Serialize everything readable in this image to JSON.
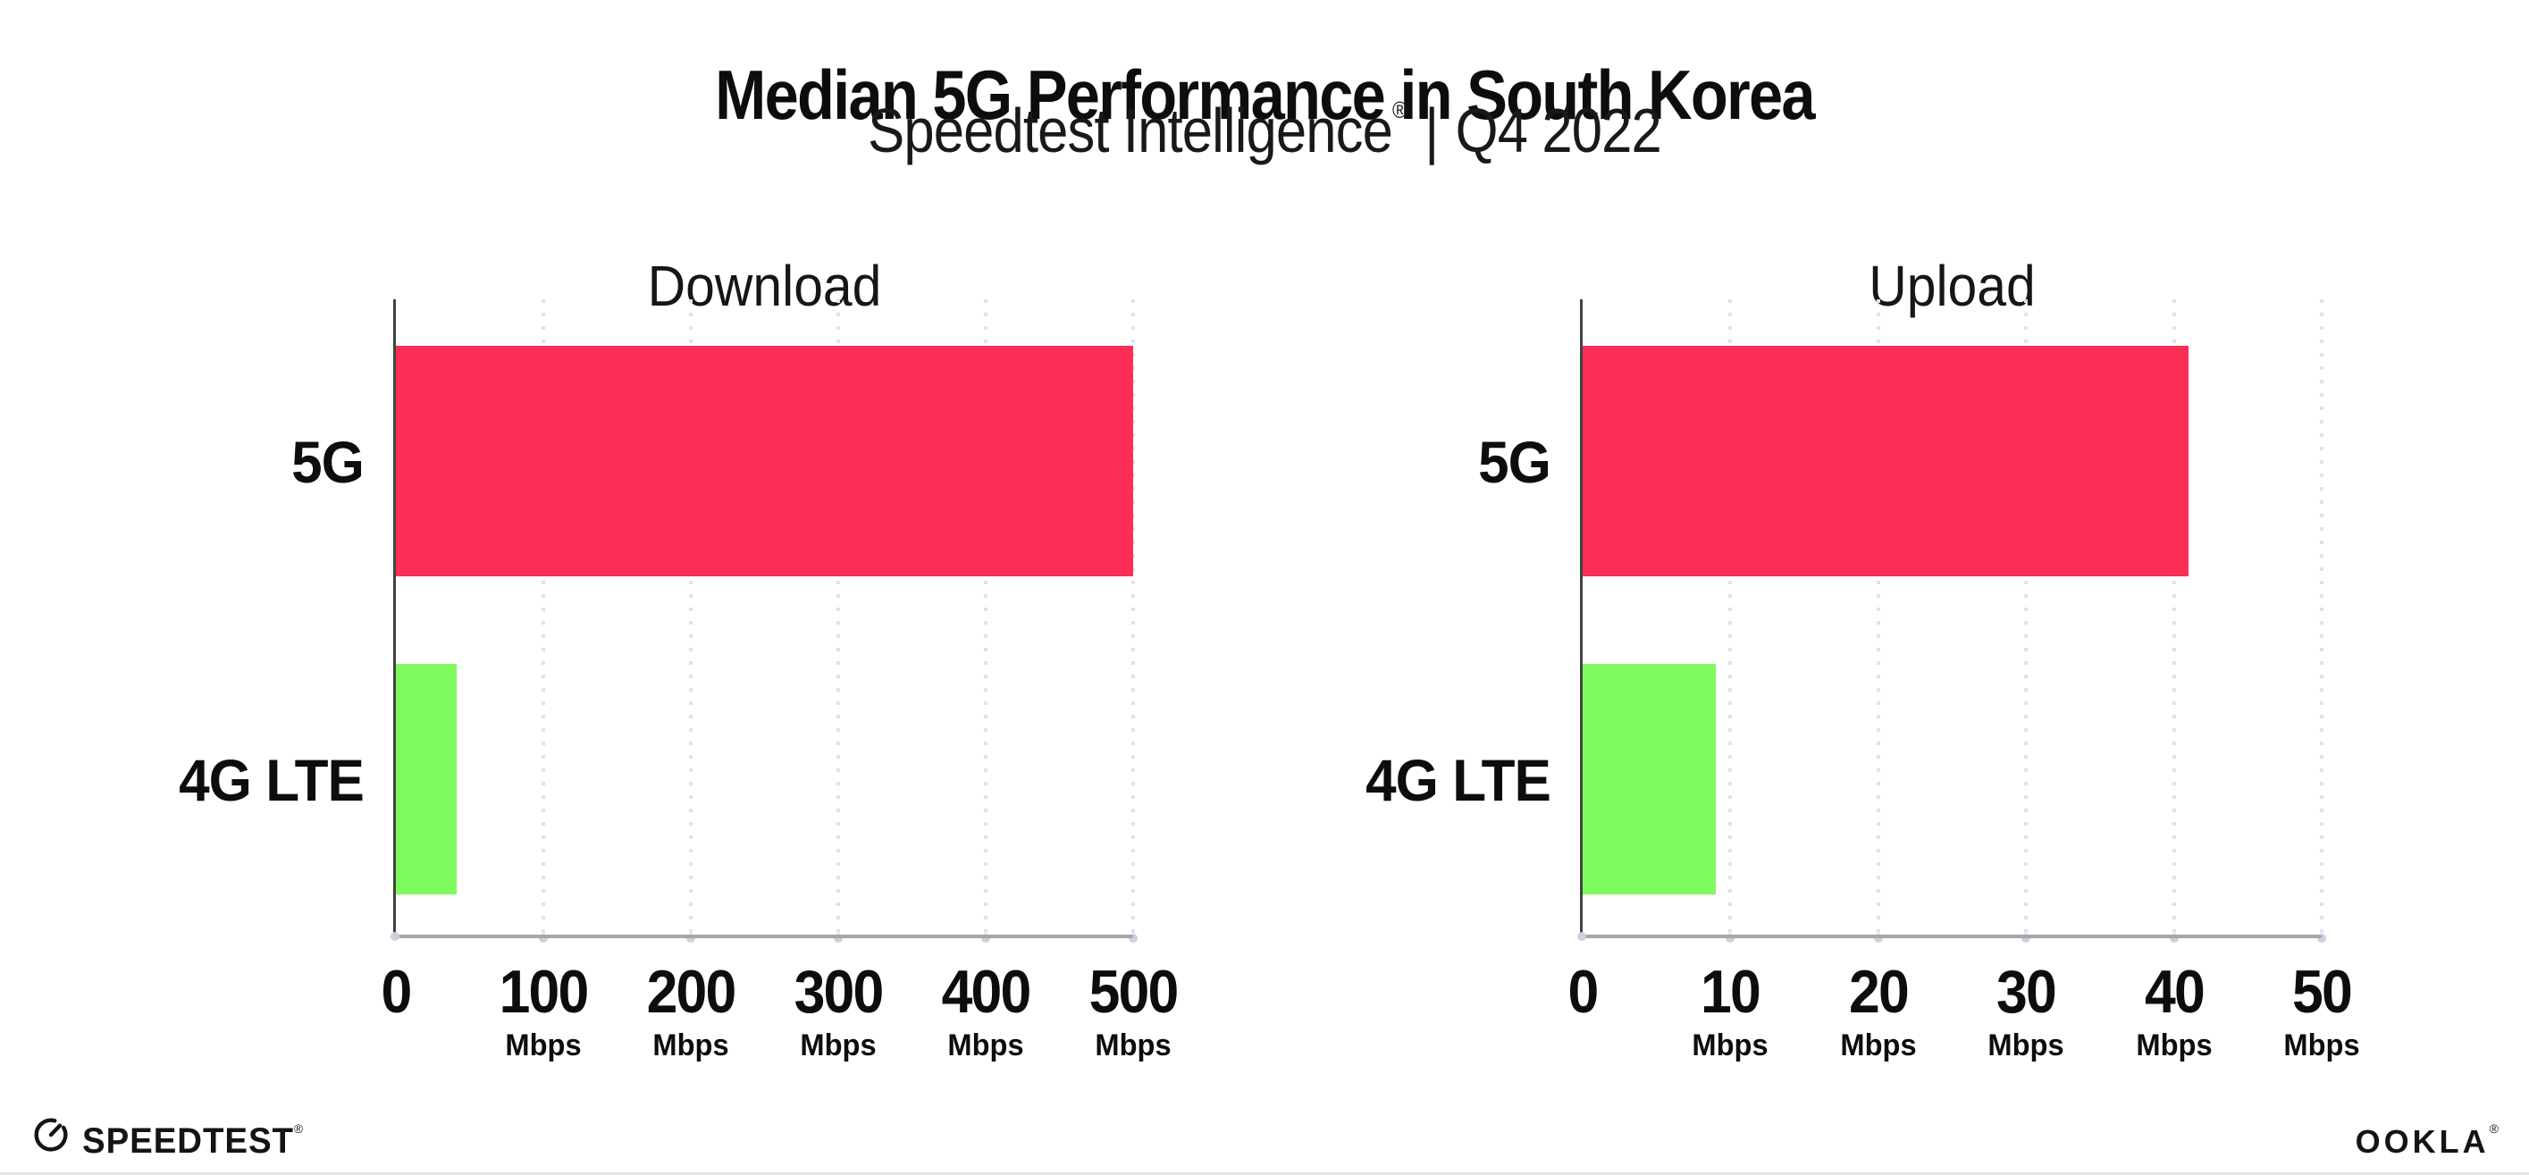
{
  "header": {
    "title": "Median 5G Performance in South Korea",
    "subtitle": {
      "brand": "Speedtest Intelligence",
      "registered_mark": "®",
      "separator": "|",
      "period": "Q4 2022"
    }
  },
  "chart_data": [
    {
      "type": "bar",
      "orientation": "horizontal",
      "title": "Download",
      "categories": [
        "5G",
        "4G LTE"
      ],
      "values": [
        500,
        41
      ],
      "unit": "Mbps",
      "xlim": [
        0,
        500
      ],
      "grid": "dotted-vertical",
      "legend": "none",
      "ticks": [
        {
          "label": "0",
          "unit": ""
        },
        {
          "label": "100",
          "unit": "Mbps"
        },
        {
          "label": "200",
          "unit": "Mbps"
        },
        {
          "label": "300",
          "unit": "Mbps"
        },
        {
          "label": "400",
          "unit": "Mbps"
        },
        {
          "label": "500",
          "unit": "Mbps"
        }
      ]
    },
    {
      "type": "bar",
      "orientation": "horizontal",
      "title": "Upload",
      "categories": [
        "5G",
        "4G LTE"
      ],
      "values": [
        41,
        9
      ],
      "unit": "Mbps",
      "xlim": [
        0,
        50
      ],
      "grid": "dotted-vertical",
      "legend": "none",
      "ticks": [
        {
          "label": "0",
          "unit": ""
        },
        {
          "label": "10",
          "unit": "Mbps"
        },
        {
          "label": "20",
          "unit": "Mbps"
        },
        {
          "label": "30",
          "unit": "Mbps"
        },
        {
          "label": "40",
          "unit": "Mbps"
        },
        {
          "label": "50",
          "unit": "Mbps"
        }
      ]
    }
  ],
  "colors": {
    "bar_5g": "#fc2d57",
    "bar_4g_lte": "#7ffa5f",
    "axis_line": "#a7a7a7",
    "spine": "#3e4440",
    "grid_dots": "#dfe2ec",
    "text": "#0d0d0d"
  },
  "footer": {
    "speedtest_wordmark": "SPEEDTEST",
    "speedtest_registered": "®",
    "ookla_wordmark": "OOKLA",
    "ookla_registered": "®"
  }
}
